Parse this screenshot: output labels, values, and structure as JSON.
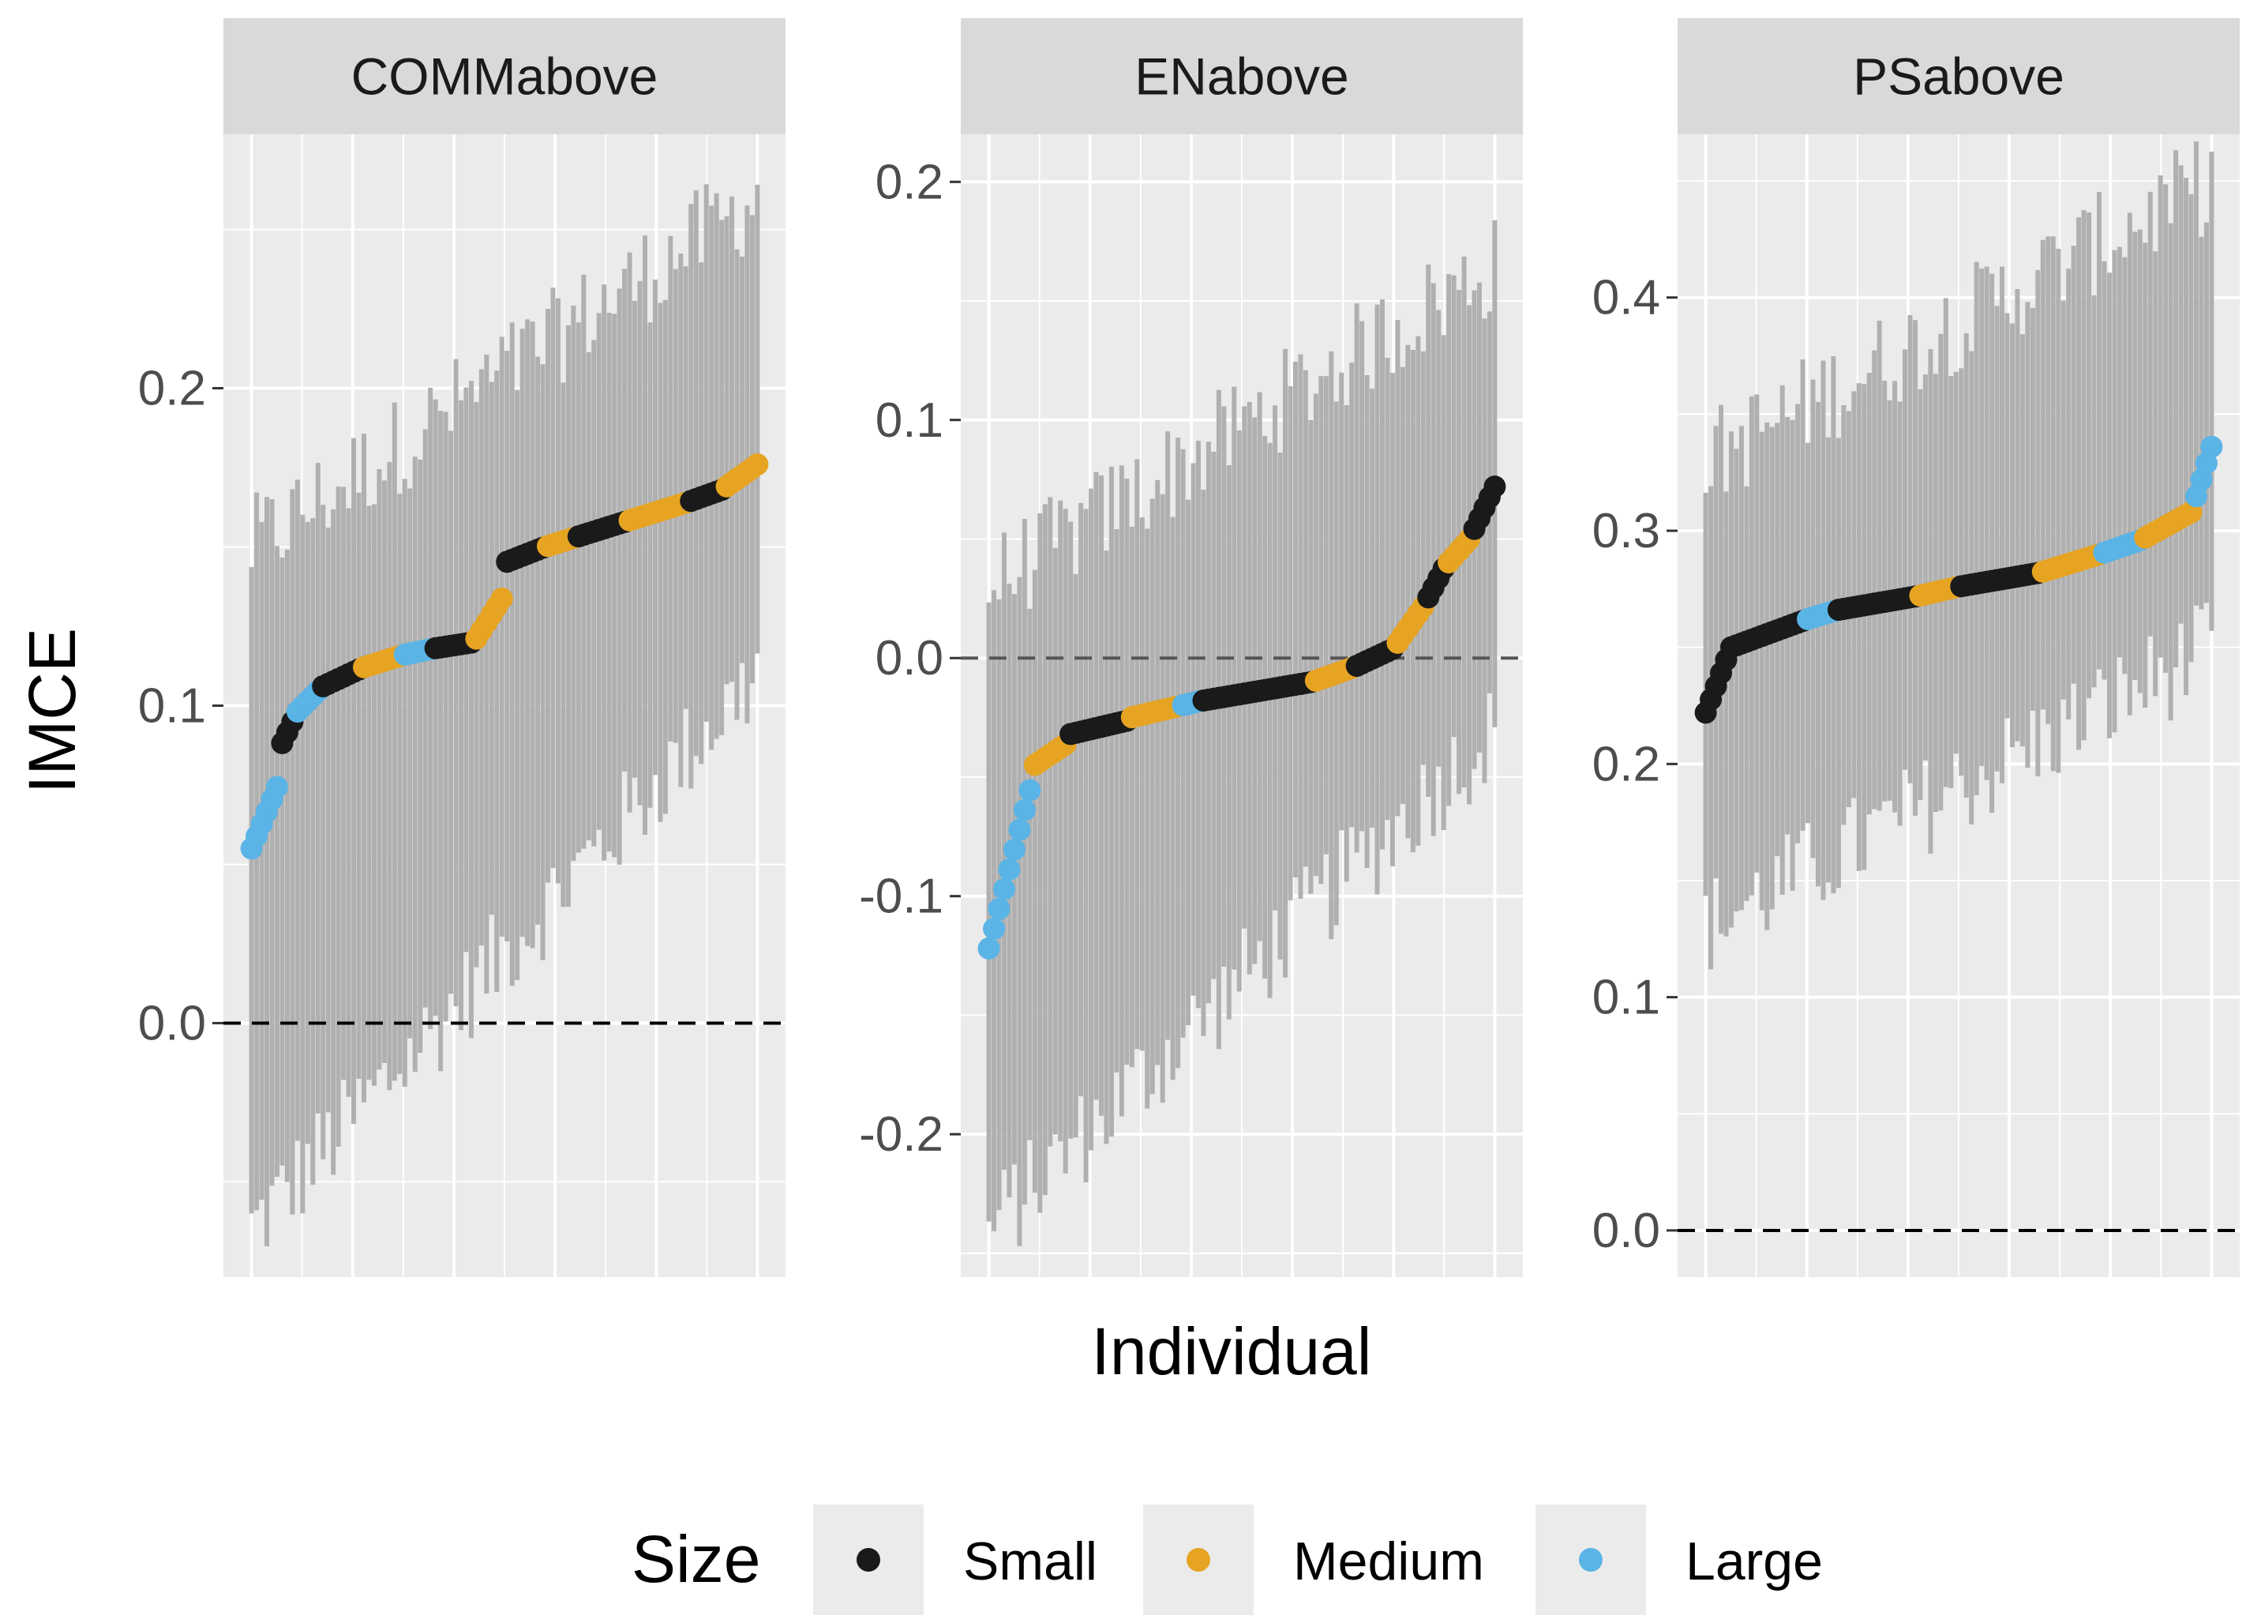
{
  "chart_data": {
    "type": "scatter",
    "subtype": "faceted point-range (sorted individual estimates with intervals)",
    "xlabel": "Individual",
    "ylabel": "IMCE",
    "x_ticks_shown": false,
    "legend": {
      "title": "Size",
      "position": "bottom",
      "entries": [
        {
          "label": "Small",
          "color": "#1a1a1a"
        },
        {
          "label": "Medium",
          "color": "#e6a422"
        },
        {
          "label": "Large",
          "color": "#5ab4e6"
        }
      ]
    },
    "interval_color": "#b0b0b0",
    "reference_line": {
      "y": 0.0,
      "style": "dashed"
    },
    "facets": [
      {
        "title": "COMMabove",
        "ylim": [
          -0.08,
          0.28
        ],
        "yticks": [
          0.0,
          0.1,
          0.2
        ],
        "ytick_labels": [
          "0.0",
          "0.1",
          "0.2"
        ],
        "n_individuals": 100,
        "segments": [
          {
            "from": 0.0,
            "to": 0.06,
            "y0": 0.055,
            "y1": 0.078,
            "size": "Large"
          },
          {
            "from": 0.06,
            "to": 0.09,
            "y0": 0.088,
            "y1": 0.098,
            "size": "Small"
          },
          {
            "from": 0.09,
            "to": 0.14,
            "y0": 0.098,
            "y1": 0.106,
            "size": "Large"
          },
          {
            "from": 0.14,
            "to": 0.22,
            "y0": 0.106,
            "y1": 0.112,
            "size": "Small"
          },
          {
            "from": 0.22,
            "to": 0.3,
            "y0": 0.112,
            "y1": 0.116,
            "size": "Medium"
          },
          {
            "from": 0.3,
            "to": 0.36,
            "y0": 0.116,
            "y1": 0.118,
            "size": "Large"
          },
          {
            "from": 0.36,
            "to": 0.44,
            "y0": 0.118,
            "y1": 0.12,
            "size": "Small"
          },
          {
            "from": 0.44,
            "to": 0.5,
            "y0": 0.12,
            "y1": 0.135,
            "size": "Medium"
          },
          {
            "from": 0.5,
            "to": 0.58,
            "y0": 0.145,
            "y1": 0.15,
            "size": "Small"
          },
          {
            "from": 0.58,
            "to": 0.64,
            "y0": 0.15,
            "y1": 0.153,
            "size": "Medium"
          },
          {
            "from": 0.64,
            "to": 0.74,
            "y0": 0.153,
            "y1": 0.158,
            "size": "Small"
          },
          {
            "from": 0.74,
            "to": 0.86,
            "y0": 0.158,
            "y1": 0.164,
            "size": "Medium"
          },
          {
            "from": 0.86,
            "to": 0.93,
            "y0": 0.164,
            "y1": 0.168,
            "size": "Small"
          },
          {
            "from": 0.93,
            "to": 1.0,
            "y0": 0.168,
            "y1": 0.176,
            "size": "Medium"
          }
        ],
        "ci_lower_range": [
          -0.065,
          0.11
        ],
        "ci_upper_range": [
          0.15,
          0.26
        ]
      },
      {
        "title": "ENabove",
        "ylim": [
          -0.26,
          0.22
        ],
        "yticks": [
          -0.2,
          -0.1,
          0.0,
          0.1,
          0.2
        ],
        "ytick_labels": [
          "-0.2",
          "-0.1",
          "0.0",
          "0.1",
          "0.2"
        ],
        "n_individuals": 100,
        "segments": [
          {
            "from": 0.0,
            "to": 0.09,
            "y0": -0.122,
            "y1": -0.048,
            "size": "Large"
          },
          {
            "from": 0.09,
            "to": 0.16,
            "y0": -0.045,
            "y1": -0.035,
            "size": "Medium"
          },
          {
            "from": 0.16,
            "to": 0.28,
            "y0": -0.032,
            "y1": -0.026,
            "size": "Small"
          },
          {
            "from": 0.28,
            "to": 0.38,
            "y0": -0.025,
            "y1": -0.02,
            "size": "Medium"
          },
          {
            "from": 0.38,
            "to": 0.42,
            "y0": -0.02,
            "y1": -0.018,
            "size": "Large"
          },
          {
            "from": 0.42,
            "to": 0.64,
            "y0": -0.018,
            "y1": -0.01,
            "size": "Small"
          },
          {
            "from": 0.64,
            "to": 0.72,
            "y0": -0.01,
            "y1": -0.004,
            "size": "Medium"
          },
          {
            "from": 0.72,
            "to": 0.8,
            "y0": -0.004,
            "y1": 0.004,
            "size": "Small"
          },
          {
            "from": 0.8,
            "to": 0.86,
            "y0": 0.004,
            "y1": 0.022,
            "size": "Medium"
          },
          {
            "from": 0.86,
            "to": 0.9,
            "y0": 0.022,
            "y1": 0.038,
            "size": "Small"
          },
          {
            "from": 0.9,
            "to": 0.95,
            "y0": 0.038,
            "y1": 0.05,
            "size": "Medium"
          },
          {
            "from": 0.95,
            "to": 1.0,
            "y0": 0.05,
            "y1": 0.072,
            "size": "Small"
          }
        ],
        "ci_lower_range": [
          -0.24,
          -0.03
        ],
        "ci_upper_range": [
          0.03,
          0.165
        ]
      },
      {
        "title": "PSabove",
        "ylim": [
          -0.02,
          0.47
        ],
        "yticks": [
          0.0,
          0.1,
          0.2,
          0.3,
          0.4
        ],
        "ytick_labels": [
          "0.0",
          "0.1",
          "0.2",
          "0.3",
          "0.4"
        ],
        "n_individuals": 100,
        "segments": [
          {
            "from": 0.0,
            "to": 0.05,
            "y0": 0.222,
            "y1": 0.25,
            "size": "Small"
          },
          {
            "from": 0.05,
            "to": 0.2,
            "y0": 0.25,
            "y1": 0.262,
            "size": "Small"
          },
          {
            "from": 0.2,
            "to": 0.26,
            "y0": 0.262,
            "y1": 0.266,
            "size": "Large"
          },
          {
            "from": 0.26,
            "to": 0.42,
            "y0": 0.266,
            "y1": 0.272,
            "size": "Small"
          },
          {
            "from": 0.42,
            "to": 0.5,
            "y0": 0.272,
            "y1": 0.276,
            "size": "Medium"
          },
          {
            "from": 0.5,
            "to": 0.66,
            "y0": 0.276,
            "y1": 0.282,
            "size": "Small"
          },
          {
            "from": 0.66,
            "to": 0.78,
            "y0": 0.282,
            "y1": 0.29,
            "size": "Medium"
          },
          {
            "from": 0.78,
            "to": 0.86,
            "y0": 0.29,
            "y1": 0.296,
            "size": "Large"
          },
          {
            "from": 0.86,
            "to": 0.96,
            "y0": 0.296,
            "y1": 0.308,
            "size": "Medium"
          },
          {
            "from": 0.96,
            "to": 1.0,
            "y0": 0.308,
            "y1": 0.336,
            "size": "Large"
          }
        ],
        "ci_lower_range": [
          0.13,
          0.25
        ],
        "ci_upper_range": [
          0.33,
          0.45
        ]
      }
    ]
  }
}
